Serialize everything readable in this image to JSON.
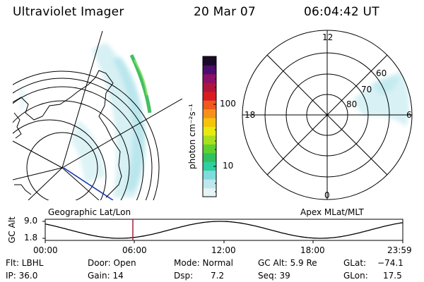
{
  "header": {
    "instrument": "Ultraviolet Imager",
    "date": "20 Mar 07",
    "time": "06:04:42 UT"
  },
  "colorbar": {
    "unit_label": "photon cm⁻²s⁻¹",
    "ticks": [
      "100",
      "10"
    ],
    "colors": [
      "#e6f4f6",
      "#bfe8ee",
      "#7fdcdc",
      "#2fcfa0",
      "#30c060",
      "#60d030",
      "#a8e020",
      "#e6ea10",
      "#f4c40a",
      "#f7901a",
      "#ee5a1c",
      "#d81c20",
      "#b0143c",
      "#8a1068",
      "#4b0e6a",
      "#1a0a2a"
    ]
  },
  "polar_plot": {
    "mlt_labels": [
      "12",
      "18",
      "6",
      "0"
    ],
    "mlat_labels": [
      "60",
      "70",
      "80"
    ]
  },
  "timeline": {
    "left_label": "Geographic Lat/Lon",
    "right_label": "Apex MLat/MLT",
    "axis_title": "GC Alt",
    "y_ticks": [
      "9.0",
      "1.8"
    ],
    "x_ticks": [
      "00:00",
      "06:00",
      "12:00",
      "18:00",
      "23:59"
    ],
    "marker_color": "#a0203a"
  },
  "info": {
    "flt": "Flt: LBHL",
    "ip": "IP: 36.0",
    "door": "Door: Open",
    "gain": "Gain: 14",
    "mode": "Mode: Normal",
    "dsp_label": "Dsp:",
    "dsp_value": "7.2",
    "gc_alt": "GC Alt: 5.9 Re",
    "seq": "Seq: 39",
    "glat_label": "GLat:",
    "glat_value": "−74.1",
    "glon_label": "GLon:",
    "glon_value": "17.5"
  }
}
